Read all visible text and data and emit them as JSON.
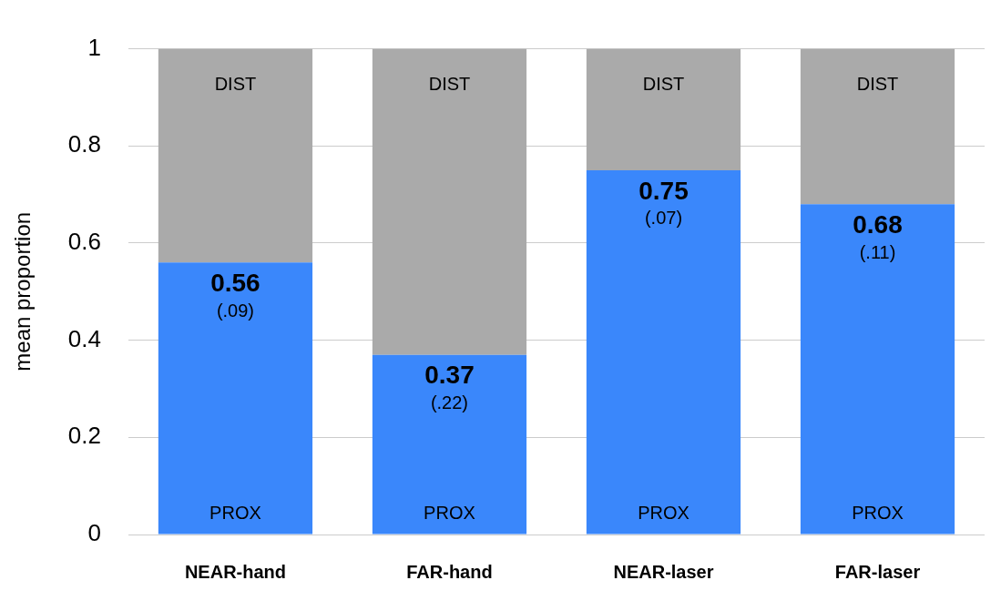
{
  "chart_data": {
    "type": "bar",
    "stacked": true,
    "categories": [
      "NEAR-hand",
      "FAR-hand",
      "NEAR-laser",
      "FAR-laser"
    ],
    "ylabel": "mean proportion",
    "ylim": [
      0,
      1
    ],
    "yticks": [
      0,
      0.2,
      0.4,
      0.6,
      0.8,
      1
    ],
    "grid": "y",
    "legend": false,
    "series": [
      {
        "name": "PROX",
        "color": "#3a87fb",
        "values": [
          0.56,
          0.37,
          0.75,
          0.68
        ],
        "value_labels": [
          "0.56",
          "0.37",
          "0.75",
          "0.68"
        ]
      },
      {
        "name": "DIST",
        "color": "#aaaaaa",
        "values": [
          0.44,
          0.63,
          0.25,
          0.32
        ]
      }
    ],
    "annotations": [
      {
        "text": "(.09)",
        "x": "NEAR-hand",
        "y": 0.56
      },
      {
        "text": "(.22)",
        "x": "FAR-hand",
        "y": 0.37
      },
      {
        "text": "(.07)",
        "x": "NEAR-laser",
        "y": 0.75
      },
      {
        "text": "(.11)",
        "x": "FAR-laser",
        "y": 0.68
      }
    ]
  }
}
